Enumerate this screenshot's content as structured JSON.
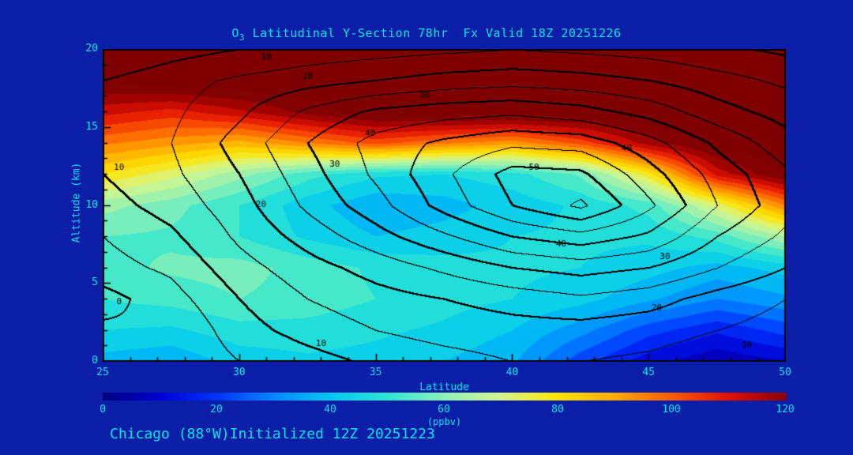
{
  "colors": {
    "background_navy": "#0a1ea8",
    "accent_cyan": "#00e6e6",
    "contour_black": "#000000",
    "saturated_red": "#8c0000"
  },
  "header": {
    "title_prefix": "O",
    "title_sub": "3",
    "title_rest": " Latitudinal Y-Section 78hr  Fx Valid 18Z 20251226"
  },
  "footer": {
    "text": "Chicago (88°W)Initialized 12Z 20251223"
  },
  "chart_data": {
    "type": "heatmap",
    "title": "O3 Latitudinal Y-Section 78hr  Fx Valid 18Z 20251226",
    "xlabel": "Latitude",
    "ylabel": "Altitude (km)",
    "xlim": [
      25,
      50
    ],
    "ylim": [
      0,
      20
    ],
    "x_ticks": [
      25,
      30,
      35,
      40,
      45,
      50
    ],
    "y_ticks": [
      0,
      5,
      10,
      15,
      20
    ],
    "grid": false,
    "lat": [
      25,
      27.5,
      30,
      32.5,
      35,
      37.5,
      40,
      42.5,
      45,
      47.5,
      50
    ],
    "alt_km": [
      0,
      2,
      4,
      6,
      8,
      10,
      12,
      14,
      16,
      18,
      20
    ],
    "fill_field_name": "ozone_ppbv",
    "ozone_ppbv": [
      [
        38,
        36,
        42,
        44,
        43,
        40,
        36,
        22,
        12,
        6,
        10
      ],
      [
        45,
        44,
        48,
        48,
        46,
        44,
        40,
        32,
        22,
        16,
        22
      ],
      [
        50,
        52,
        55,
        53,
        50,
        47,
        45,
        42,
        36,
        30,
        34
      ],
      [
        53,
        56,
        57,
        53,
        49,
        47,
        46,
        45,
        42,
        38,
        42
      ],
      [
        55,
        54,
        50,
        44,
        40,
        42,
        45,
        46,
        46,
        52,
        65
      ],
      [
        62,
        57,
        50,
        42,
        36,
        38,
        42,
        46,
        52,
        72,
        95
      ],
      [
        80,
        72,
        62,
        52,
        46,
        45,
        48,
        56,
        78,
        112,
        126
      ],
      [
        96,
        92,
        88,
        95,
        102,
        96,
        92,
        102,
        118,
        128,
        130
      ],
      [
        112,
        108,
        114,
        122,
        128,
        130,
        130,
        130,
        130,
        130,
        130
      ],
      [
        126,
        129,
        130,
        130,
        130,
        130,
        130,
        130,
        130,
        130,
        130
      ],
      [
        130,
        130,
        130,
        130,
        130,
        130,
        130,
        130,
        130,
        130,
        130
      ]
    ],
    "contour_field_name": "overlaid line contours (jet / wind-speed style field)",
    "contour_field_values": [
      [
        2,
        0,
        5,
        8,
        11,
        13,
        15,
        15,
        14,
        12,
        10
      ],
      [
        1,
        0,
        8,
        12,
        15,
        17,
        18,
        18,
        17,
        15,
        13
      ],
      [
        -2,
        3,
        10,
        15,
        18,
        20,
        22,
        24,
        22,
        18,
        15
      ],
      [
        3,
        6,
        13,
        18,
        22,
        26,
        30,
        32,
        30,
        25,
        20
      ],
      [
        5,
        9,
        16,
        22,
        28,
        34,
        40,
        43,
        39,
        30,
        24
      ],
      [
        8,
        12,
        18,
        26,
        33,
        42,
        50,
        56,
        46,
        35,
        27
      ],
      [
        10,
        14,
        20,
        28,
        36,
        44,
        52,
        51,
        42,
        33,
        26
      ],
      [
        10,
        15,
        22,
        30,
        37,
        41,
        44,
        43,
        37,
        29,
        22
      ],
      [
        10,
        14,
        19,
        26,
        31,
        33,
        34,
        32,
        28,
        22,
        18
      ],
      [
        10,
        13,
        16,
        18,
        20,
        22,
        23,
        22,
        20,
        17,
        14
      ],
      [
        5,
        8,
        10,
        12,
        13,
        14,
        15,
        14,
        13,
        11,
        9
      ]
    ],
    "contour_interval": 5,
    "contour_bold_interval": 10,
    "contour_labels": [
      {
        "lat": 31.0,
        "alt": 19.5,
        "text": "10"
      },
      {
        "lat": 32.5,
        "alt": 18.2,
        "text": "20"
      },
      {
        "lat": 36.8,
        "alt": 17.0,
        "text": "30"
      },
      {
        "lat": 34.8,
        "alt": 14.6,
        "text": "40"
      },
      {
        "lat": 44.2,
        "alt": 13.6,
        "text": "40"
      },
      {
        "lat": 40.8,
        "alt": 12.4,
        "text": "50"
      },
      {
        "lat": 25.6,
        "alt": 12.4,
        "text": "10"
      },
      {
        "lat": 33.5,
        "alt": 12.6,
        "text": "30"
      },
      {
        "lat": 30.8,
        "alt": 10.0,
        "text": "20"
      },
      {
        "lat": 41.8,
        "alt": 7.5,
        "text": "40"
      },
      {
        "lat": 45.6,
        "alt": 6.7,
        "text": "30"
      },
      {
        "lat": 45.3,
        "alt": 3.4,
        "text": "20"
      },
      {
        "lat": 25.6,
        "alt": 3.8,
        "text": "0"
      },
      {
        "lat": 33.0,
        "alt": 1.1,
        "text": "10"
      },
      {
        "lat": 48.6,
        "alt": 1.0,
        "text": "10"
      }
    ],
    "colorbar": {
      "min": 0,
      "max": 120,
      "ticks": [
        0,
        20,
        40,
        60,
        80,
        100,
        120
      ],
      "unit_label": "(ppbv)"
    },
    "colormap": [
      [
        0,
        "#000080"
      ],
      [
        10,
        "#0000d2"
      ],
      [
        20,
        "#0033ff"
      ],
      [
        30,
        "#0088ff"
      ],
      [
        40,
        "#00c8f0"
      ],
      [
        50,
        "#2ee6d2"
      ],
      [
        60,
        "#8ff0b4"
      ],
      [
        70,
        "#d4f58c"
      ],
      [
        80,
        "#ffe400"
      ],
      [
        90,
        "#ffaa00"
      ],
      [
        100,
        "#ff5a00"
      ],
      [
        110,
        "#e01000"
      ],
      [
        120,
        "#8c0000"
      ],
      [
        125,
        "#7a0000"
      ]
    ]
  }
}
